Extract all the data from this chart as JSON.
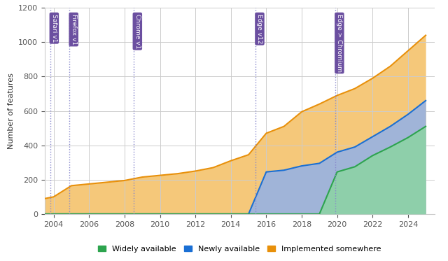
{
  "title": "",
  "ylabel": "Number of features",
  "xlim": [
    2003.5,
    2025.5
  ],
  "ylim": [
    0,
    1200
  ],
  "yticks": [
    0,
    200,
    400,
    600,
    800,
    1000,
    1200
  ],
  "xticks": [
    2004,
    2006,
    2008,
    2010,
    2012,
    2014,
    2016,
    2018,
    2020,
    2022,
    2024
  ],
  "bg_color": "#ffffff",
  "grid_color": "#cccccc",
  "area_orange_color": "#f5c87a",
  "area_orange_edge": "#e8900a",
  "area_blue_color": "#a0b4d8",
  "area_blue_edge": "#1a6fd4",
  "area_green_color": "#8ecfaa",
  "area_green_edge": "#2da44e",
  "annotation_bg": "#6b4fa0",
  "annotation_text_color": "#ffffff",
  "milestones": [
    {
      "x": 2003.8,
      "label": "Safari v1"
    },
    {
      "x": 2004.9,
      "label": "Firefox v1"
    },
    {
      "x": 2008.5,
      "label": "Chrome v1"
    },
    {
      "x": 2015.4,
      "label": "Edge v12"
    },
    {
      "x": 2019.9,
      "label": "Edge > Chromium"
    }
  ],
  "years_orange": [
    2003,
    2004,
    2005,
    2006,
    2007,
    2008,
    2009,
    2010,
    2011,
    2012,
    2013,
    2014,
    2015,
    2016,
    2017,
    2018,
    2019,
    2020,
    2021,
    2022,
    2023,
    2024,
    2025
  ],
  "values_orange": [
    80,
    100,
    165,
    175,
    185,
    195,
    215,
    225,
    235,
    250,
    270,
    310,
    345,
    470,
    510,
    595,
    640,
    690,
    730,
    790,
    860,
    950,
    1040
  ],
  "years_blue": [
    2003,
    2004,
    2005,
    2006,
    2007,
    2008,
    2009,
    2010,
    2011,
    2012,
    2013,
    2014,
    2015,
    2016,
    2017,
    2018,
    2019,
    2020,
    2021,
    2022,
    2023,
    2024,
    2025
  ],
  "values_blue": [
    0,
    0,
    0,
    0,
    0,
    0,
    0,
    0,
    0,
    0,
    0,
    0,
    0,
    245,
    255,
    280,
    295,
    360,
    390,
    450,
    510,
    580,
    660
  ],
  "years_green": [
    2003,
    2004,
    2005,
    2006,
    2007,
    2008,
    2009,
    2010,
    2011,
    2012,
    2013,
    2014,
    2015,
    2016,
    2017,
    2018,
    2019,
    2020,
    2021,
    2022,
    2023,
    2024,
    2025
  ],
  "values_green": [
    0,
    0,
    0,
    0,
    0,
    0,
    0,
    0,
    0,
    0,
    0,
    0,
    0,
    0,
    0,
    0,
    0,
    245,
    275,
    340,
    390,
    445,
    510
  ],
  "legend_entries": [
    {
      "label": "Widely available",
      "color": "#2da44e"
    },
    {
      "label": "Newly available",
      "color": "#1a6fd4"
    },
    {
      "label": "Implemented somewhere",
      "color": "#e8900a"
    }
  ]
}
